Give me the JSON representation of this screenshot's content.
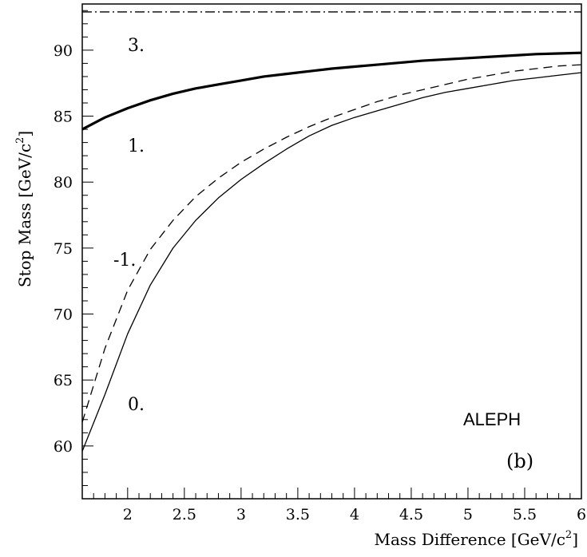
{
  "chart_data": {
    "type": "line",
    "xlabel_main": "Mass Difference [GeV/c",
    "xlabel_sup": "2",
    "xlabel_close": "]",
    "ylabel_main": "Stop Mass [GeV/c",
    "ylabel_sup": "2",
    "ylabel_close": "]",
    "xlim": [
      1.6,
      6.0
    ],
    "ylim": [
      56.0,
      93.5
    ],
    "x_ticks": [
      2,
      2.5,
      3,
      3.5,
      4,
      4.5,
      5,
      5.5,
      6
    ],
    "x_tick_labels": [
      "2",
      "2.5",
      "3",
      "3.5",
      "4",
      "4.5",
      "5",
      "5.5",
      "6"
    ],
    "y_ticks": [
      60,
      65,
      70,
      75,
      80,
      85,
      90
    ],
    "y_tick_labels": [
      "60",
      "65",
      "70",
      "75",
      "80",
      "85",
      "90"
    ],
    "series": [
      {
        "name": "3.",
        "style": "dashdot",
        "x": [
          1.6,
          6.0
        ],
        "y": [
          92.9,
          92.9
        ]
      },
      {
        "name": "1.",
        "style": "thick",
        "x": [
          1.6,
          1.8,
          2.0,
          2.2,
          2.4,
          2.6,
          2.8,
          3.0,
          3.2,
          3.4,
          3.6,
          3.8,
          4.0,
          4.2,
          4.4,
          4.6,
          4.8,
          5.0,
          5.2,
          5.4,
          5.6,
          5.8,
          6.0
        ],
        "y": [
          84.0,
          84.9,
          85.6,
          86.2,
          86.7,
          87.1,
          87.4,
          87.7,
          88.0,
          88.2,
          88.4,
          88.6,
          88.75,
          88.9,
          89.05,
          89.2,
          89.3,
          89.4,
          89.5,
          89.6,
          89.7,
          89.75,
          89.8
        ]
      },
      {
        "name": "-1.",
        "style": "dashed",
        "x": [
          1.6,
          1.8,
          2.0,
          2.2,
          2.4,
          2.6,
          2.8,
          3.0,
          3.2,
          3.4,
          3.6,
          3.8,
          4.0,
          4.2,
          4.4,
          4.6,
          4.8,
          5.0,
          5.2,
          5.4,
          5.6,
          5.8,
          6.0
        ],
        "y": [
          61.8,
          67.4,
          71.8,
          74.9,
          77.1,
          78.9,
          80.3,
          81.5,
          82.5,
          83.4,
          84.2,
          84.9,
          85.5,
          86.1,
          86.6,
          87.0,
          87.4,
          87.8,
          88.1,
          88.4,
          88.6,
          88.8,
          88.9
        ]
      },
      {
        "name": "0.",
        "style": "solid",
        "x": [
          1.6,
          1.8,
          2.0,
          2.2,
          2.4,
          2.6,
          2.8,
          3.0,
          3.2,
          3.4,
          3.6,
          3.8,
          4.0,
          4.2,
          4.4,
          4.6,
          4.8,
          5.0,
          5.2,
          5.4,
          5.6,
          5.8,
          6.0
        ],
        "y": [
          59.6,
          63.9,
          68.5,
          72.2,
          75.0,
          77.1,
          78.8,
          80.2,
          81.4,
          82.5,
          83.5,
          84.3,
          84.9,
          85.4,
          85.9,
          86.4,
          86.8,
          87.1,
          87.4,
          87.7,
          87.9,
          88.1,
          88.3
        ]
      }
    ],
    "curve_labels": [
      "3.",
      "1.",
      "-1.",
      "0."
    ],
    "experiment_label": "ALEPH",
    "panel_label": "(b)",
    "grid": false,
    "legend": "none"
  }
}
